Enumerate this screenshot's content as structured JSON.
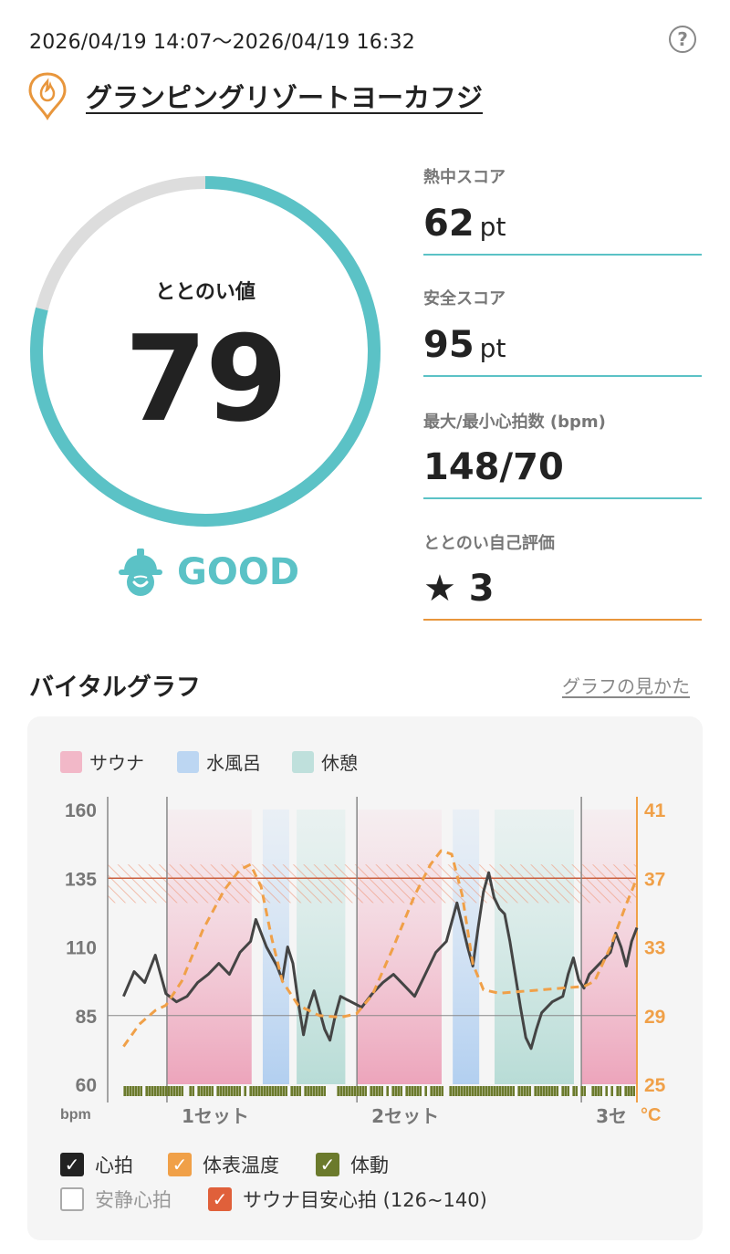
{
  "header": {
    "date_range": "2026/04/19 14:07～2026/04/19 16:32",
    "help_label": "?",
    "facility_name": "グランピングリゾートヨーカフジ"
  },
  "score": {
    "label": "ととのい値",
    "value": "79",
    "progress": 0.79,
    "rating": "GOOD",
    "colors": {
      "ring": "#5bc2c6",
      "track": "#dddddd"
    }
  },
  "metrics": [
    {
      "label": "熱中スコア",
      "value": "62",
      "unit": "pt",
      "line_color": "#5bc2c6"
    },
    {
      "label": "安全スコア",
      "value": "95",
      "unit": "pt",
      "line_color": "#5bc2c6"
    },
    {
      "label": "最大/最小心拍数 (bpm)",
      "value": "148/70",
      "unit": "",
      "line_color": "#5bc2c6"
    },
    {
      "label": "ととのい自己評価",
      "value": "★ 3",
      "unit": "",
      "line_color": "#e8963c"
    }
  ],
  "vital": {
    "title": "バイタルグラフ",
    "how_to_link": "グラフの見かた",
    "legend": [
      {
        "label": "サウナ",
        "color": "#f2b8c8"
      },
      {
        "label": "水風呂",
        "color": "#bcd6f2"
      },
      {
        "label": "休憩",
        "color": "#bfe0dc"
      }
    ],
    "checkboxes": [
      {
        "label": "心拍",
        "checked": true,
        "color": "#222222"
      },
      {
        "label": "体表温度",
        "checked": true,
        "color": "#f0a048"
      },
      {
        "label": "体動",
        "checked": true,
        "color": "#6b7a2c"
      },
      {
        "label": "安静心拍",
        "checked": false,
        "color": "#999999"
      },
      {
        "label": "サウナ目安心拍 (126~140)",
        "checked": true,
        "color": "#e0603a"
      }
    ]
  },
  "chart_data": {
    "type": "line",
    "x_labels": [
      "1セット",
      "2セット",
      "3セ"
    ],
    "y_left": {
      "unit": "bpm",
      "ticks": [
        "160",
        "135",
        "110",
        "85",
        "60"
      ],
      "range": [
        60,
        160
      ]
    },
    "y_right": {
      "unit": "°C",
      "ticks": [
        "41",
        "37",
        "33",
        "29",
        "25"
      ],
      "range": [
        25,
        41
      ]
    },
    "band": {
      "name": "サウナ目安心拍",
      "range": [
        126,
        140
      ]
    },
    "phases": [
      {
        "type": "サウナ",
        "start": 0.112,
        "end": 0.272
      },
      {
        "type": "水風呂",
        "start": 0.293,
        "end": 0.343
      },
      {
        "type": "休憩",
        "start": 0.357,
        "end": 0.449
      },
      {
        "type": "サウナ",
        "start": 0.471,
        "end": 0.631
      },
      {
        "type": "水風呂",
        "start": 0.652,
        "end": 0.702
      },
      {
        "type": "休憩",
        "start": 0.731,
        "end": 0.881
      },
      {
        "type": "サウナ",
        "start": 0.895,
        "end": 1.0
      }
    ],
    "set_lines": [
      0.112,
      0.471,
      0.895
    ],
    "series": [
      {
        "name": "心拍",
        "color": "#444444",
        "points": [
          [
            0.03,
            92
          ],
          [
            0.05,
            101
          ],
          [
            0.07,
            97
          ],
          [
            0.09,
            107
          ],
          [
            0.1,
            100
          ],
          [
            0.11,
            93
          ],
          [
            0.13,
            90
          ],
          [
            0.15,
            92
          ],
          [
            0.17,
            97
          ],
          [
            0.19,
            100
          ],
          [
            0.21,
            104
          ],
          [
            0.23,
            100
          ],
          [
            0.25,
            108
          ],
          [
            0.27,
            112
          ],
          [
            0.28,
            120
          ],
          [
            0.3,
            110
          ],
          [
            0.32,
            103
          ],
          [
            0.33,
            98
          ],
          [
            0.34,
            110
          ],
          [
            0.35,
            104
          ],
          [
            0.36,
            90
          ],
          [
            0.37,
            78
          ],
          [
            0.38,
            88
          ],
          [
            0.39,
            94
          ],
          [
            0.41,
            80
          ],
          [
            0.42,
            76
          ],
          [
            0.43,
            85
          ],
          [
            0.44,
            92
          ],
          [
            0.46,
            90
          ],
          [
            0.48,
            88
          ],
          [
            0.5,
            93
          ],
          [
            0.52,
            97
          ],
          [
            0.54,
            100
          ],
          [
            0.56,
            96
          ],
          [
            0.58,
            92
          ],
          [
            0.6,
            100
          ],
          [
            0.62,
            108
          ],
          [
            0.64,
            112
          ],
          [
            0.66,
            126
          ],
          [
            0.67,
            118
          ],
          [
            0.68,
            110
          ],
          [
            0.69,
            103
          ],
          [
            0.7,
            117
          ],
          [
            0.71,
            130
          ],
          [
            0.72,
            137
          ],
          [
            0.73,
            128
          ],
          [
            0.74,
            124
          ],
          [
            0.75,
            122
          ],
          [
            0.76,
            112
          ],
          [
            0.77,
            100
          ],
          [
            0.78,
            88
          ],
          [
            0.79,
            77
          ],
          [
            0.8,
            73
          ],
          [
            0.81,
            80
          ],
          [
            0.82,
            86
          ],
          [
            0.84,
            90
          ],
          [
            0.86,
            92
          ],
          [
            0.87,
            100
          ],
          [
            0.88,
            106
          ],
          [
            0.89,
            98
          ],
          [
            0.9,
            95
          ],
          [
            0.91,
            100
          ],
          [
            0.93,
            104
          ],
          [
            0.95,
            108
          ],
          [
            0.96,
            115
          ],
          [
            0.97,
            110
          ],
          [
            0.98,
            103
          ],
          [
            0.99,
            112
          ],
          [
            1.0,
            117
          ]
        ]
      },
      {
        "name": "体表温度",
        "color": "#f0a048",
        "points": [
          [
            0.03,
            27.2
          ],
          [
            0.06,
            28.5
          ],
          [
            0.09,
            29.3
          ],
          [
            0.11,
            29.6
          ],
          [
            0.14,
            31
          ],
          [
            0.18,
            34
          ],
          [
            0.22,
            36.3
          ],
          [
            0.25,
            37.5
          ],
          [
            0.27,
            37.8
          ],
          [
            0.29,
            36.5
          ],
          [
            0.31,
            33.5
          ],
          [
            0.33,
            31
          ],
          [
            0.36,
            29.6
          ],
          [
            0.4,
            29
          ],
          [
            0.44,
            28.9
          ],
          [
            0.47,
            29.1
          ],
          [
            0.5,
            30.2
          ],
          [
            0.54,
            33
          ],
          [
            0.58,
            36
          ],
          [
            0.61,
            37.8
          ],
          [
            0.63,
            38.6
          ],
          [
            0.65,
            38.4
          ],
          [
            0.67,
            36
          ],
          [
            0.69,
            32
          ],
          [
            0.71,
            30.5
          ],
          [
            0.74,
            30.3
          ],
          [
            0.78,
            30.4
          ],
          [
            0.82,
            30.5
          ],
          [
            0.86,
            30.6
          ],
          [
            0.9,
            30.7
          ],
          [
            0.92,
            31
          ],
          [
            0.95,
            33
          ],
          [
            0.98,
            35.5
          ],
          [
            1.0,
            37
          ]
        ]
      }
    ]
  }
}
